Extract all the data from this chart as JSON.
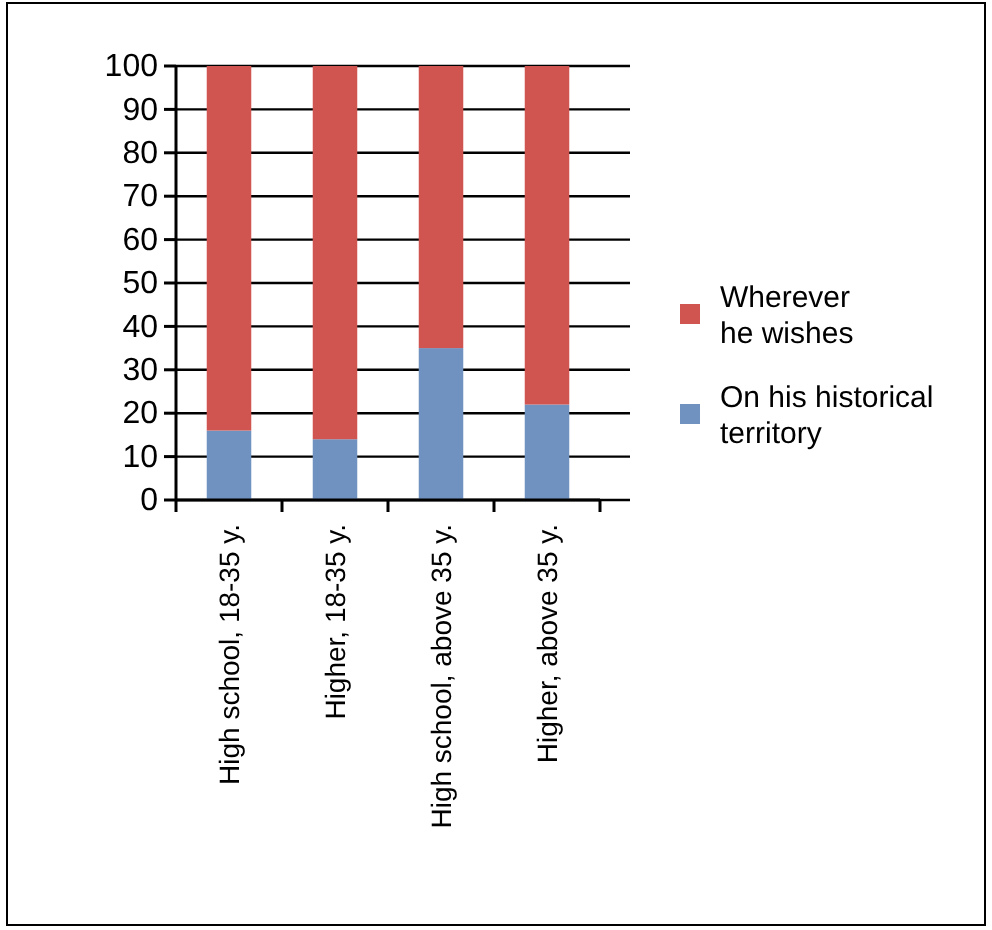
{
  "chart_data": {
    "type": "bar",
    "stacked": true,
    "categories": [
      "High school, 18-35 y.",
      "Higher, 18-35 y.",
      "High school, above 35 y.",
      "Higher, above 35 y."
    ],
    "series": [
      {
        "name": "On his historical territory",
        "color": "#7092c0",
        "values": [
          16,
          14,
          35,
          22
        ]
      },
      {
        "name": "Wherever he wishes",
        "color": "#d05450",
        "values": [
          84,
          86,
          65,
          78
        ]
      }
    ],
    "ylim": [
      0,
      100
    ],
    "yticks": [
      0,
      10,
      20,
      30,
      40,
      50,
      60,
      70,
      80,
      90,
      100
    ],
    "grid": "y",
    "legend": "right"
  }
}
